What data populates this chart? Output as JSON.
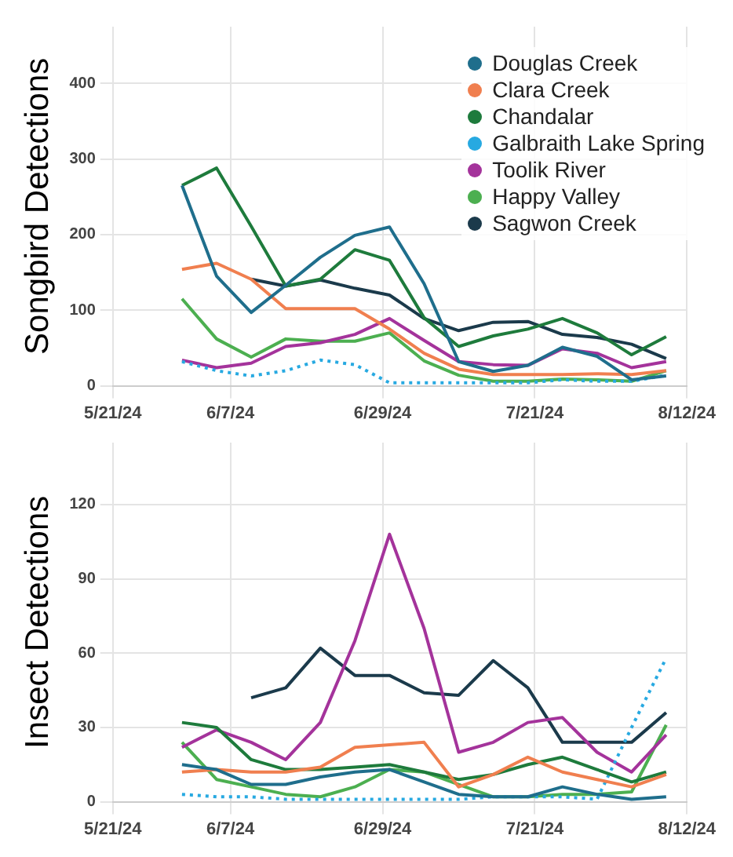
{
  "chart_data": [
    {
      "type": "line",
      "ylabel": "Songbird Detections",
      "x": [
        "2024-05-31",
        "2024-06-05",
        "2024-06-10",
        "2024-06-15",
        "2024-06-20",
        "2024-06-25",
        "2024-06-30",
        "2024-07-05",
        "2024-07-10",
        "2024-07-15",
        "2024-07-20",
        "2024-07-25",
        "2024-07-30",
        "2024-08-04",
        "2024-08-09"
      ],
      "series": [
        {
          "name": "Douglas Creek",
          "color": "#1f6e8c",
          "values": [
            265,
            145,
            97,
            133,
            170,
            199,
            210,
            135,
            32,
            19,
            27,
            51,
            39,
            8,
            13
          ]
        },
        {
          "name": "Clara Creek",
          "color": "#f07f4f",
          "values": [
            154,
            162,
            141,
            102,
            102,
            102,
            75,
            43,
            22,
            15,
            15,
            15,
            16,
            15,
            20
          ]
        },
        {
          "name": "Chandalar",
          "color": "#1e7b3c",
          "values": [
            265,
            288,
            211,
            132,
            141,
            180,
            166,
            90,
            52,
            66,
            75,
            89,
            70,
            41,
            65
          ]
        },
        {
          "name": "Galbraith Lake Spring",
          "color": "#27a9e1",
          "line_style": "dotted",
          "values": [
            32,
            20,
            13,
            20,
            34,
            28,
            4,
            4,
            4,
            4,
            4,
            8,
            6,
            6,
            14
          ]
        },
        {
          "name": "Toolik River",
          "color": "#a4339b",
          "values": [
            34,
            24,
            30,
            52,
            57,
            68,
            89,
            60,
            32,
            28,
            27,
            49,
            43,
            24,
            32
          ]
        },
        {
          "name": "Happy Valley",
          "color": "#4caf50",
          "values": [
            115,
            62,
            38,
            62,
            59,
            59,
            70,
            33,
            14,
            6,
            6,
            9,
            8,
            6,
            20
          ]
        },
        {
          "name": "Sagwon Creek",
          "color": "#1b3a4b",
          "values": [
            null,
            null,
            141,
            132,
            140,
            129,
            120,
            89,
            73,
            84,
            85,
            68,
            64,
            55,
            36
          ]
        }
      ],
      "xlim": [
        "2024-05-21",
        "2024-08-12"
      ],
      "xticks": [
        {
          "value": "2024-05-21",
          "label": "5/21/24"
        },
        {
          "value": "2024-06-07",
          "label": "6/7/24"
        },
        {
          "value": "2024-06-29",
          "label": "6/29/24"
        },
        {
          "value": "2024-07-21",
          "label": "7/21/24"
        },
        {
          "value": "2024-08-12",
          "label": "8/12/24"
        }
      ],
      "ylim": [
        0,
        475
      ],
      "yticks": [
        0,
        100,
        200,
        300,
        400
      ],
      "grid": true,
      "legend": "top right",
      "marker": "none"
    },
    {
      "type": "line",
      "ylabel": "Insect Detections",
      "x": [
        "2024-05-31",
        "2024-06-05",
        "2024-06-10",
        "2024-06-15",
        "2024-06-20",
        "2024-06-25",
        "2024-06-30",
        "2024-07-05",
        "2024-07-10",
        "2024-07-15",
        "2024-07-20",
        "2024-07-25",
        "2024-07-30",
        "2024-08-04",
        "2024-08-09"
      ],
      "series": [
        {
          "color": "#1f6e8c",
          "values": [
            15,
            13,
            7,
            7,
            10,
            12,
            13,
            8,
            3,
            2,
            2,
            6,
            3,
            1,
            2
          ]
        },
        {
          "color": "#f07f4f",
          "values": [
            12,
            13,
            12,
            12,
            14,
            22,
            23,
            24,
            6,
            11,
            18,
            12,
            9,
            6,
            11
          ]
        },
        {
          "color": "#1e7b3c",
          "values": [
            32,
            30,
            17,
            13,
            13,
            14,
            15,
            12,
            9,
            11,
            15,
            18,
            13,
            8,
            12
          ]
        },
        {
          "color": "#27a9e1",
          "line_style": "dotted",
          "values": [
            3,
            2,
            2,
            1,
            1,
            1,
            1,
            1,
            1,
            2,
            2,
            2,
            1,
            30,
            58
          ]
        },
        {
          "color": "#a4339b",
          "values": [
            22,
            29,
            24,
            17,
            32,
            65,
            108,
            70,
            20,
            24,
            32,
            34,
            20,
            12,
            27
          ]
        },
        {
          "color": "#4caf50",
          "values": [
            24,
            9,
            6,
            3,
            2,
            6,
            13,
            12,
            7,
            2,
            2,
            3,
            3,
            4,
            31
          ]
        },
        {
          "color": "#1b3a4b",
          "values": [
            null,
            null,
            42,
            46,
            62,
            51,
            51,
            44,
            43,
            57,
            46,
            24,
            24,
            24,
            36
          ]
        }
      ],
      "xlim": [
        "2024-05-21",
        "2024-08-12"
      ],
      "xticks": [
        {
          "value": "2024-05-21",
          "label": "5/21/24"
        },
        {
          "value": "2024-06-07",
          "label": "6/7/24"
        },
        {
          "value": "2024-06-29",
          "label": "6/29/24"
        },
        {
          "value": "2024-07-21",
          "label": "7/21/24"
        },
        {
          "value": "2024-08-12",
          "label": "8/12/24"
        }
      ],
      "ylim": [
        0,
        145
      ],
      "yticks": [
        0,
        30,
        60,
        90,
        120
      ],
      "grid": true,
      "legend": false,
      "marker": "none"
    }
  ]
}
